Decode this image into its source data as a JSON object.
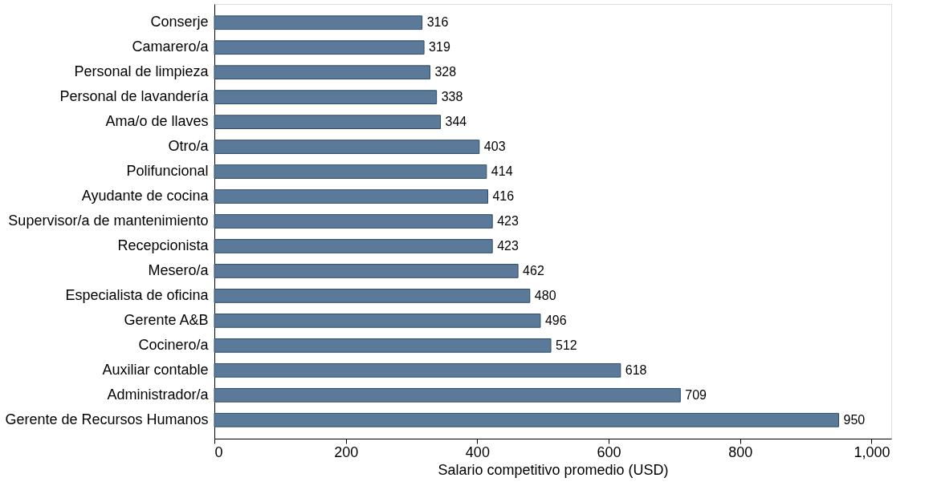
{
  "chart_data": {
    "type": "bar",
    "orientation": "horizontal",
    "xlabel": "Salario competitivo promedio (USD)",
    "categories": [
      "Conserje",
      "Camarero/a",
      "Personal de limpieza",
      "Personal de lavandería",
      "Ama/o de llaves",
      "Otro/a",
      "Polifuncional",
      "Ayudante de cocina",
      "Supervisor/a de mantenimiento",
      "Recepcionista",
      "Mesero/a",
      "Especialista de oficina",
      "Gerente A&B",
      "Cocinero/a",
      "Auxiliar contable",
      "Administrador/a",
      "Gerente de Recursos Humanos"
    ],
    "values": [
      316,
      319,
      328,
      338,
      344,
      403,
      414,
      416,
      423,
      423,
      462,
      480,
      496,
      512,
      618,
      709,
      950
    ],
    "color": "#5b7a99",
    "xlim": [
      0,
      1030
    ],
    "xticks": [
      0,
      200,
      400,
      600,
      800,
      {
        "value": 1000,
        "label": "1,000"
      }
    ],
    "data_labels": true,
    "grid": false
  }
}
